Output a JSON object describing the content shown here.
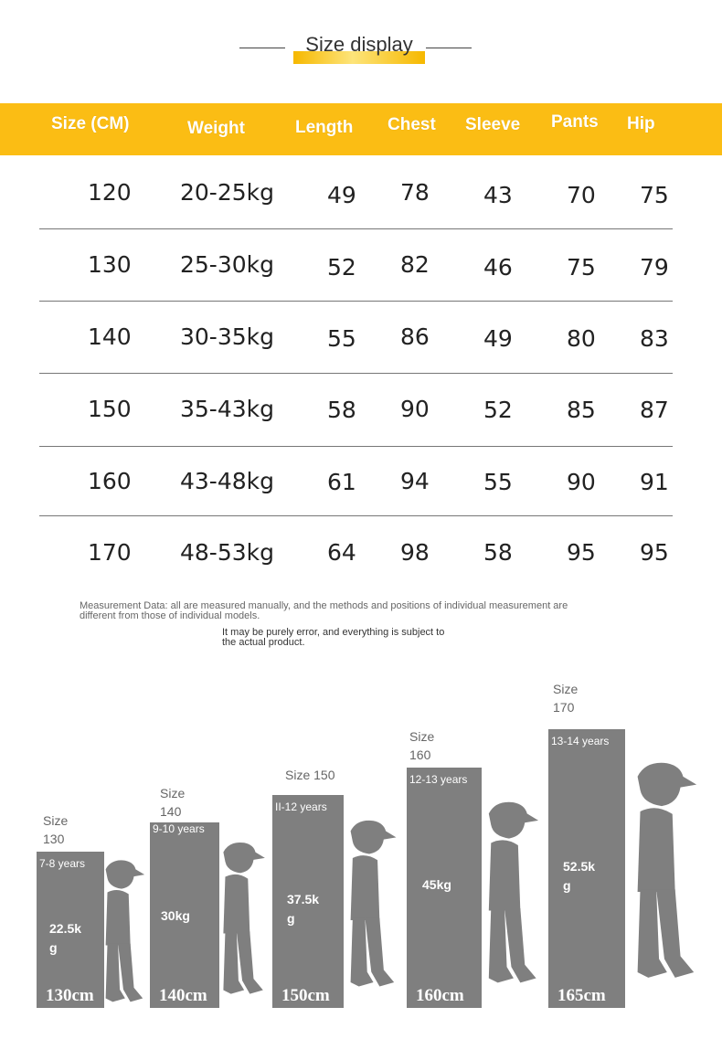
{
  "title": "Size display",
  "table": {
    "headers": [
      "Size (CM)",
      "Weight",
      "Length",
      "Chest",
      "Sleeve",
      "Pants",
      "Hip"
    ],
    "rows": [
      [
        "120",
        "20-25kg",
        "49",
        "78",
        "43",
        "70",
        "75"
      ],
      [
        "130",
        "25-30kg",
        "52",
        "82",
        "46",
        "75",
        "79"
      ],
      [
        "140",
        "30-35kg",
        "55",
        "86",
        "49",
        "80",
        "83"
      ],
      [
        "150",
        "35-43kg",
        "58",
        "90",
        "52",
        "85",
        "87"
      ],
      [
        "160",
        "43-48kg",
        "61",
        "94",
        "55",
        "90",
        "91"
      ],
      [
        "170",
        "48-53kg",
        "64",
        "98",
        "58",
        "95",
        "95"
      ]
    ]
  },
  "notes": {
    "line1": "Measurement Data: all are measured manually, and the methods and positions of individual measurement are",
    "line2": "different from those of individual models.",
    "line3": "It may be purely error, and everything is subject to",
    "line4": "the actual product."
  },
  "figures": [
    {
      "size_line1": "Size",
      "size_line2": "130",
      "age": "7-8 years",
      "weight_line1": "22.5k",
      "weight_line2": "g",
      "height": "130cm"
    },
    {
      "size_line1": "Size",
      "size_line2": "140",
      "age": "9-10 years",
      "weight_line1": "30kg",
      "weight_line2": "",
      "height": "140cm"
    },
    {
      "size_line1": "Size 150",
      "size_line2": "",
      "age": "II-12 years",
      "weight_line1": "37.5k",
      "weight_line2": "g",
      "height": "150cm"
    },
    {
      "size_line1": "Size",
      "size_line2": "160",
      "age": "12-13 years",
      "weight_line1": "45kg",
      "weight_line2": "",
      "height": "160cm"
    },
    {
      "size_line1": "Size",
      "size_line2": "170",
      "age": "13-14 years",
      "weight_line1": "52.5k",
      "weight_line2": "g",
      "height": "165cm"
    }
  ]
}
